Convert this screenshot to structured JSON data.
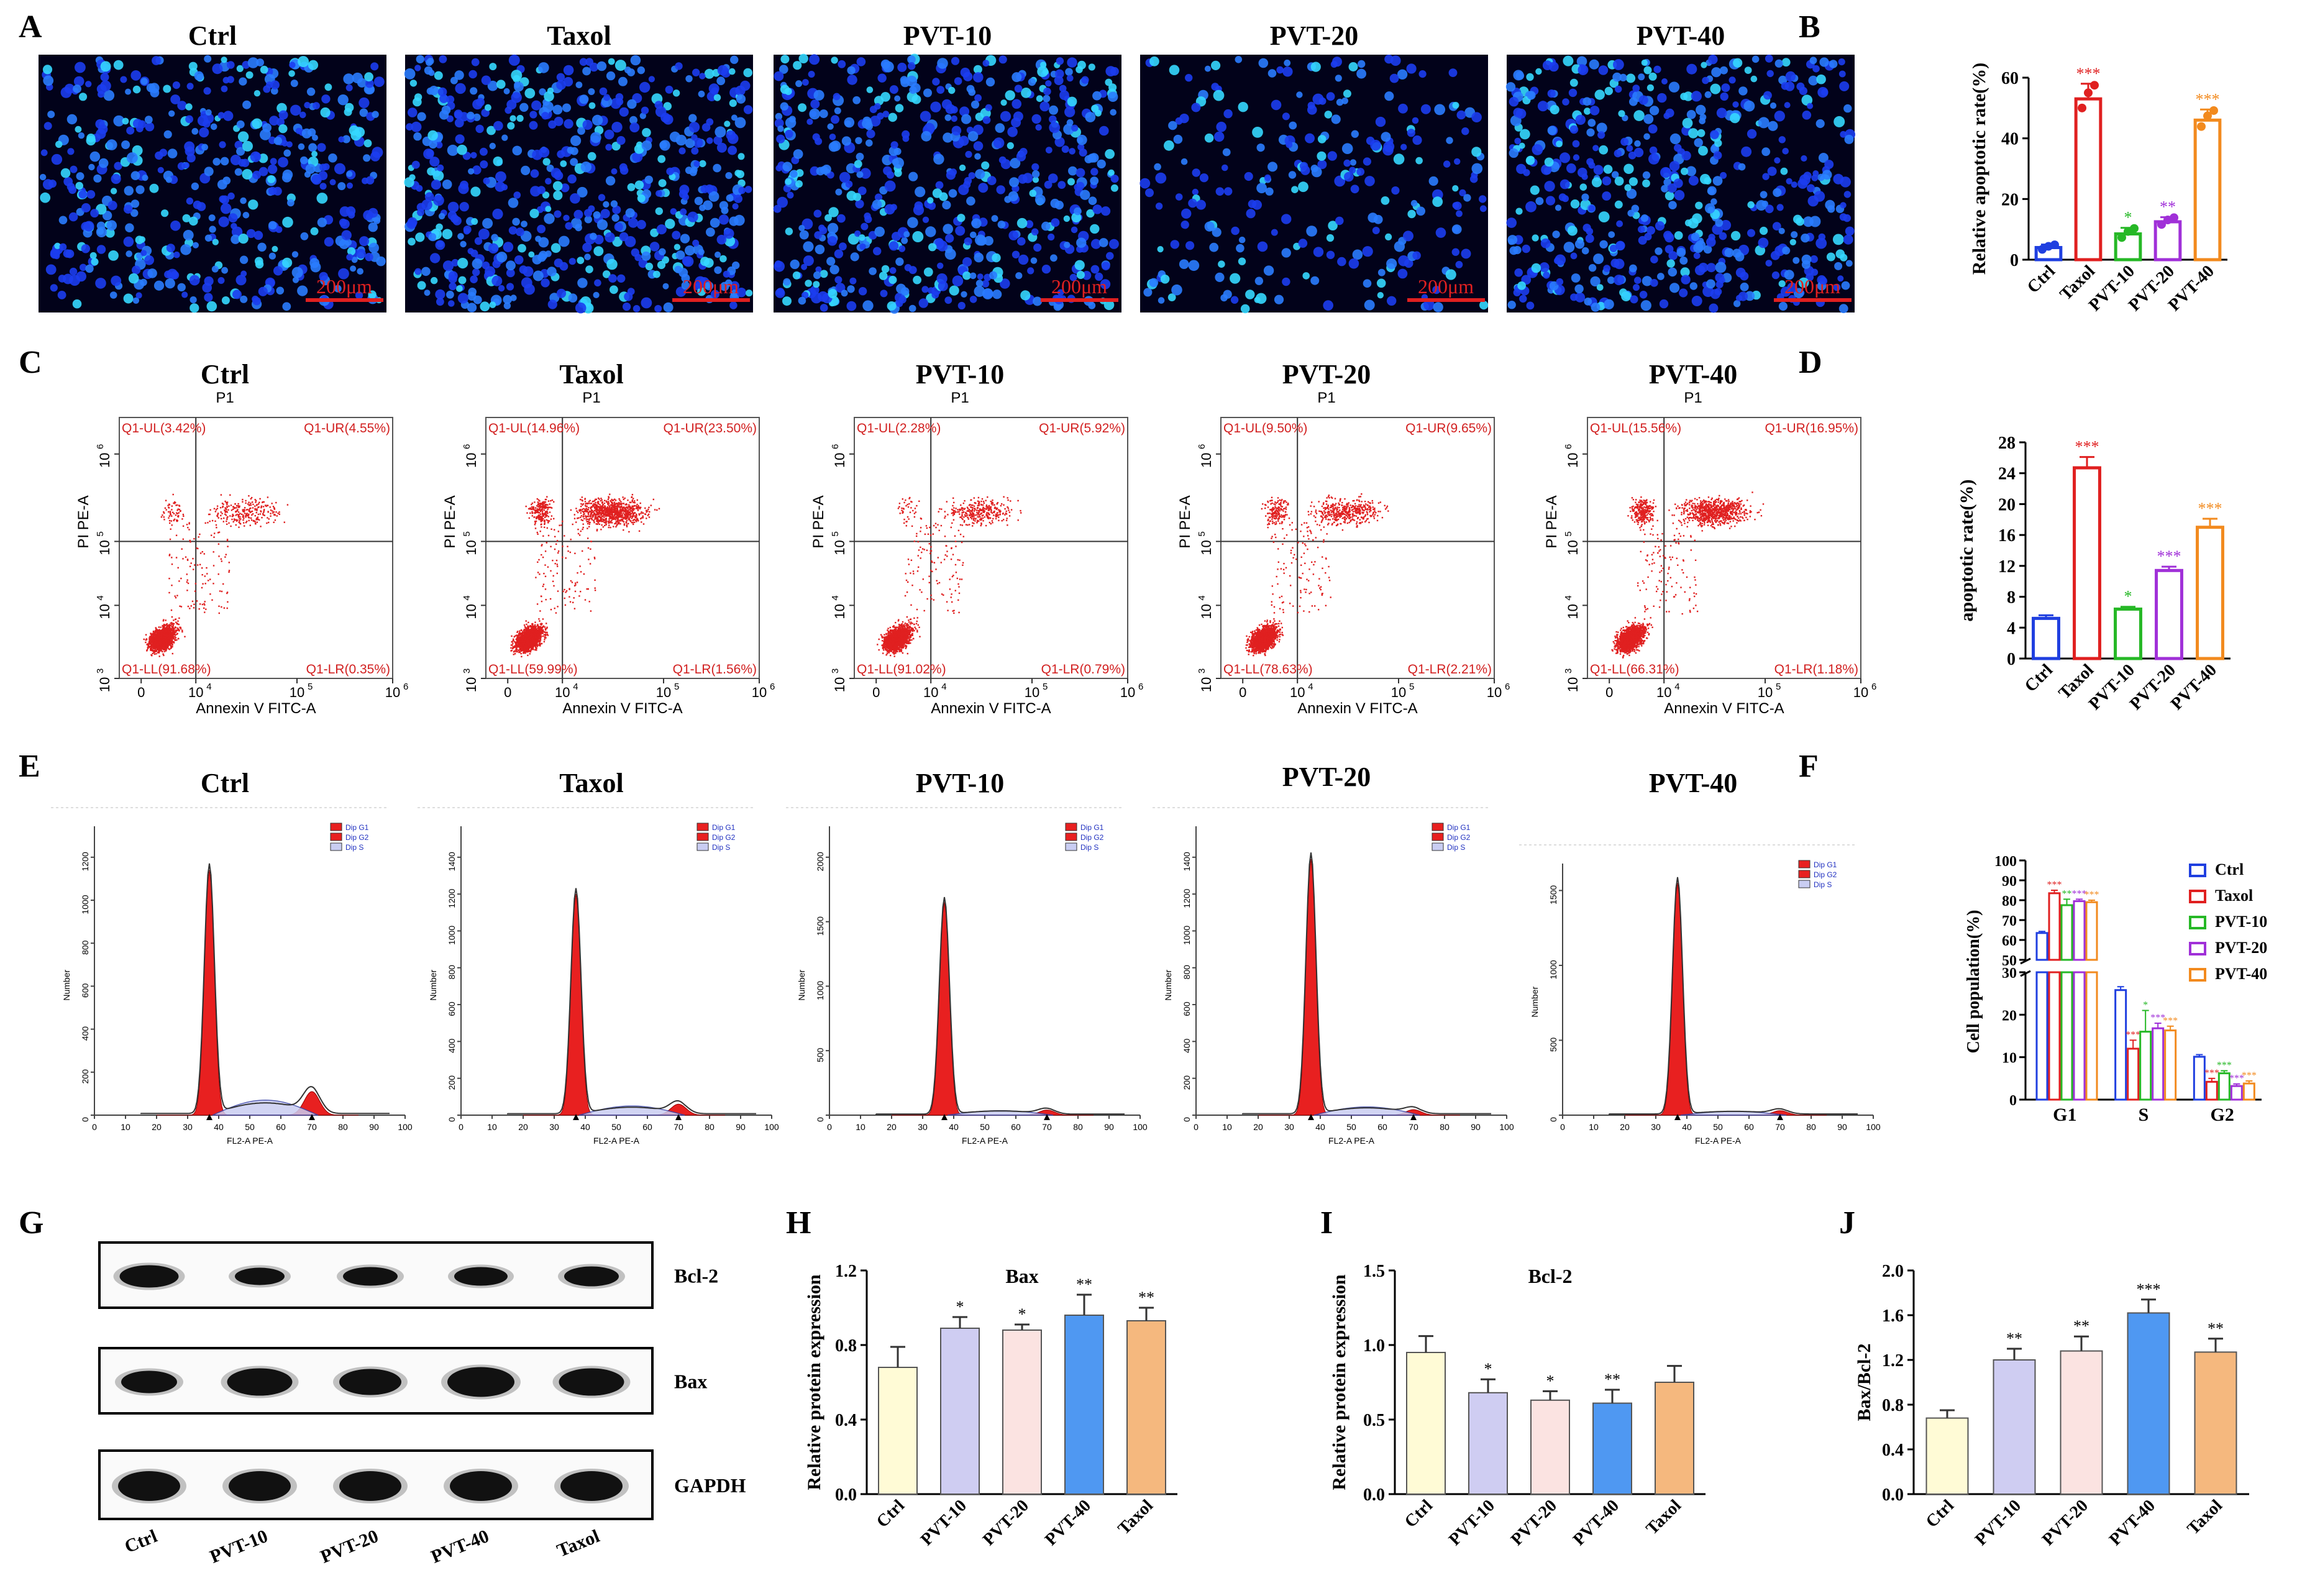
{
  "panel_letters": [
    "A",
    "B",
    "C",
    "D",
    "E",
    "F",
    "G",
    "H",
    "I",
    "J"
  ],
  "groups": [
    "Ctrl",
    "Taxol",
    "PVT-10",
    "PVT-20",
    "PVT-40"
  ],
  "colors": {
    "ctrl": "#1f3fe0",
    "taxol": "#e02020",
    "pvt10": "#26b826",
    "pvt20": "#a030d8",
    "pvt40": "#f28a1e",
    "bar_ctrl": "#fffbd6",
    "bar_pvt10": "#cfcdf2",
    "bar_pvt20": "#fbe3e1",
    "bar_pvt40": "#4f98f2",
    "bar_taxol": "#f5b87e",
    "flow_dot": "#e02020",
    "quad_text": "#d22020",
    "scale_bar": "#e02020"
  },
  "panel_A": {
    "titles": [
      "Ctrl",
      "Taxol",
      "PVT-10",
      "PVT-20",
      "PVT-40"
    ],
    "scale_label": "200μm"
  },
  "panel_C": {
    "titles": [
      "Ctrl",
      "Taxol",
      "PVT-10",
      "PVT-20",
      "PVT-40"
    ],
    "gate": "P1",
    "x_axis": "Annexin V FITC-A",
    "y_axis": "PI PE-A",
    "x_ticks": [
      "0",
      "10",
      "10",
      "10"
    ],
    "x_exps": [
      "",
      "4",
      "5",
      "6"
    ],
    "y_ticks": [
      "10",
      "10",
      "10",
      "10"
    ],
    "y_exps": [
      "3",
      "4",
      "5",
      "6"
    ],
    "quadrants": [
      {
        "ul": "Q1-UL(3.42%)",
        "ur": "Q1-UR(4.55%)",
        "ll": "Q1-LL(91.68%)",
        "lr": "Q1-LR(0.35%)"
      },
      {
        "ul": "Q1-UL(14.96%)",
        "ur": "Q1-UR(23.50%)",
        "ll": "Q1-LL(59.99%)",
        "lr": "Q1-LR(1.56%)"
      },
      {
        "ul": "Q1-UL(2.28%)",
        "ur": "Q1-UR(5.92%)",
        "ll": "Q1-LL(91.02%)",
        "lr": "Q1-LR(0.79%)"
      },
      {
        "ul": "Q1-UL(9.50%)",
        "ur": "Q1-UR(9.65%)",
        "ll": "Q1-LL(78.63%)",
        "lr": "Q1-LR(2.21%)"
      },
      {
        "ul": "Q1-UL(15.56%)",
        "ur": "Q1-UR(16.95%)",
        "ll": "Q1-LL(66.31%)",
        "lr": "Q1-LR(1.18%)"
      }
    ]
  },
  "panel_E": {
    "titles": [
      "Ctrl",
      "Taxol",
      "PVT-10",
      "PVT-20",
      "PVT-40"
    ],
    "x_axis": "FL2-A PE-A",
    "y_axis": "Number",
    "x_ticks": [
      "0",
      "10",
      "20",
      "30",
      "40",
      "50",
      "60",
      "70",
      "80",
      "90",
      "100"
    ],
    "legend": [
      "Dip G1",
      "Dip G2",
      "Dip S"
    ],
    "y_ticks": [
      [
        "0",
        "200",
        "400",
        "600",
        "800",
        "1000",
        "1200"
      ],
      [
        "0",
        "200",
        "400",
        "600",
        "800",
        "1000",
        "1200",
        "1400"
      ],
      [
        "0",
        "500",
        "1000",
        "1500",
        "2000"
      ],
      [
        "0",
        "200",
        "400",
        "600",
        "800",
        "1000",
        "1200",
        "1400"
      ],
      [
        "0",
        "500",
        "1000",
        "1500"
      ]
    ],
    "peak_heights": [
      1140,
      1200,
      1650,
      1390,
      1550
    ]
  },
  "panel_G": {
    "lanes": [
      "Ctrl",
      "PVT-10",
      "PVT-20",
      "PVT-40",
      "Taxol"
    ],
    "blots": [
      "Bcl-2",
      "Bax",
      "GAPDH"
    ]
  },
  "chart_data": [
    {
      "panel": "B",
      "type": "bar",
      "categories": [
        "Ctrl",
        "Taxol",
        "PVT-10",
        "PVT-20",
        "PVT-40"
      ],
      "values": [
        4,
        53,
        8.5,
        12.5,
        46
      ],
      "errors": [
        1,
        5,
        2,
        1.5,
        3.5
      ],
      "significance": [
        "",
        "***",
        "*",
        "**",
        "***"
      ],
      "ylabel": "Relative apoptotic rate(%)",
      "ylim": [
        0,
        60
      ],
      "yticks": [
        "0",
        "20",
        "40",
        "60"
      ],
      "style": "outline"
    },
    {
      "panel": "D",
      "type": "bar",
      "categories": [
        "Ctrl",
        "Taxol",
        "PVT-10",
        "PVT-20",
        "PVT-40"
      ],
      "values": [
        5.2,
        24.7,
        6.4,
        11.4,
        17.0
      ],
      "errors": [
        0.4,
        1.4,
        0.3,
        0.5,
        1.1
      ],
      "significance": [
        "",
        "***",
        "*",
        "***",
        "***"
      ],
      "ylabel": "apoptotic rate(%)",
      "ylim": [
        0,
        28
      ],
      "yticks": [
        "0",
        "4",
        "8",
        "12",
        "16",
        "20",
        "24",
        "28"
      ],
      "style": "outline"
    },
    {
      "panel": "F",
      "type": "bar",
      "categories": [
        "G1",
        "S",
        "G2"
      ],
      "series": [
        {
          "name": "Ctrl",
          "values": [
            63.5,
            25.8,
            10.1
          ],
          "errors": [
            0.8,
            0.8,
            0.5
          ]
        },
        {
          "name": "Taxol",
          "values": [
            83.5,
            12.0,
            4.2
          ],
          "errors": [
            1.5,
            2.0,
            0.8
          ]
        },
        {
          "name": "PVT-10",
          "values": [
            77.5,
            16.0,
            6.2
          ],
          "errors": [
            3.0,
            5.0,
            0.6
          ]
        },
        {
          "name": "PVT-20",
          "values": [
            79.5,
            16.8,
            3.2
          ],
          "errors": [
            1.0,
            1.2,
            0.5
          ]
        },
        {
          "name": "PVT-40",
          "values": [
            79.0,
            16.3,
            3.8
          ],
          "errors": [
            1.0,
            1.0,
            0.6
          ]
        }
      ],
      "significance": [
        [
          "",
          "***",
          "**",
          "***",
          "***"
        ],
        [
          "",
          "***",
          "*",
          "***",
          "***"
        ],
        [
          "",
          "***",
          "***",
          "***",
          "***"
        ]
      ],
      "ylabel": "Cell population(%)",
      "upper_ticks": [
        "50",
        "60",
        "70",
        "80",
        "90",
        "100"
      ],
      "lower_ticks": [
        "0",
        "10",
        "20",
        "30"
      ],
      "axis_break": [
        30,
        50
      ],
      "legend": [
        "Ctrl",
        "Taxol",
        "PVT-10",
        "PVT-20",
        "PVT-40"
      ]
    },
    {
      "panel": "H",
      "type": "bar",
      "title": "Bax",
      "categories": [
        "Ctrl",
        "PVT-10",
        "PVT-20",
        "PVT-40",
        "Taxol"
      ],
      "values": [
        0.68,
        0.89,
        0.88,
        0.96,
        0.93
      ],
      "errors": [
        0.11,
        0.06,
        0.03,
        0.11,
        0.07
      ],
      "significance": [
        "",
        "*",
        "*",
        "**",
        "**"
      ],
      "ylabel": "Relative protein expression",
      "ylim": [
        0,
        1.2
      ],
      "yticks": [
        "0.0",
        "0.4",
        "0.8",
        "1.2"
      ],
      "style": "filled"
    },
    {
      "panel": "I",
      "type": "bar",
      "title": "Bcl-2",
      "categories": [
        "Ctrl",
        "PVT-10",
        "PVT-20",
        "PVT-40",
        "Taxol"
      ],
      "values": [
        0.95,
        0.68,
        0.63,
        0.61,
        0.75
      ],
      "errors": [
        0.11,
        0.09,
        0.06,
        0.09,
        0.11
      ],
      "significance": [
        "",
        "*",
        "*",
        "**",
        ""
      ],
      "ylabel": "Relative protein expression",
      "ylim": [
        0,
        1.5
      ],
      "yticks": [
        "0.0",
        "0.5",
        "1.0",
        "1.5"
      ],
      "style": "filled"
    },
    {
      "panel": "J",
      "type": "bar",
      "title": "",
      "categories": [
        "Ctrl",
        "PVT-10",
        "PVT-20",
        "PVT-40",
        "Taxol"
      ],
      "values": [
        0.68,
        1.2,
        1.28,
        1.62,
        1.27
      ],
      "errors": [
        0.07,
        0.1,
        0.13,
        0.12,
        0.12
      ],
      "significance": [
        "",
        "**",
        "**",
        "***",
        "**"
      ],
      "ylabel": "Bax/Bcl-2",
      "ylim": [
        0,
        2.0
      ],
      "yticks": [
        "0.0",
        "0.4",
        "0.8",
        "1.2",
        "1.6",
        "2.0"
      ],
      "style": "filled"
    }
  ]
}
